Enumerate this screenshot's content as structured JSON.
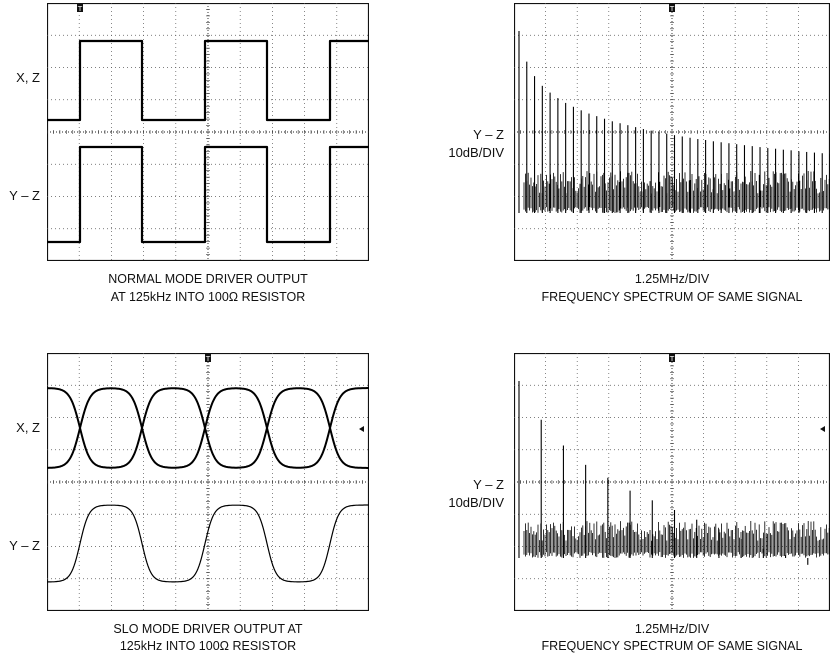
{
  "panels": [
    {
      "id": "normal-time",
      "type": "oscilloscope-time",
      "channels": [
        {
          "label": "X, Z",
          "waveform": "square-diff"
        },
        {
          "label": "Y – Z",
          "waveform": "square"
        }
      ],
      "period_us": 8,
      "frequency": "125kHz",
      "caption": [
        "NORMAL MODE DRIVER OUTPUT",
        "AT 125kHz INTO 100Ω RESISTOR"
      ]
    },
    {
      "id": "normal-spectrum",
      "type": "spectrum",
      "ylabel": [
        "Y – Z",
        "10dB/DIV"
      ],
      "xscale": "1.25MHz/DIV",
      "caption": [
        "1.25MHz/DIV",
        "FREQUENCY SPECTRUM OF SAME SIGNAL"
      ]
    },
    {
      "id": "slo-time",
      "type": "oscilloscope-time",
      "channels": [
        {
          "label": "X, Z",
          "waveform": "slew-diff"
        },
        {
          "label": "Y – Z",
          "waveform": "slew"
        }
      ],
      "period_us": 8,
      "frequency": "125kHz",
      "caption": [
        "SLO MODE DRIVER OUTPUT AT",
        "125kHz INTO 100Ω RESISTOR"
      ]
    },
    {
      "id": "slo-spectrum",
      "type": "spectrum",
      "ylabel": [
        "Y – Z",
        "10dB/DIV"
      ],
      "xscale": "1.25MHz/DIV",
      "caption": [
        "1.25MHz/DIV",
        "FREQUENCY SPECTRUM OF SAME SIGNAL"
      ]
    }
  ],
  "chart_data": [
    {
      "type": "line",
      "title": "NORMAL MODE DRIVER OUTPUT AT 125kHz INTO 100Ω RESISTOR",
      "xlabel": "",
      "ylabel": "",
      "grid": true,
      "x": [
        0,
        1.6,
        1.6,
        5.6,
        5.6,
        9.6,
        9.6,
        10
      ],
      "series": [
        {
          "name": "X, Z",
          "values": [
            0,
            0,
            1,
            1,
            0,
            0,
            1,
            1
          ]
        },
        {
          "name": "Y – Z",
          "values": [
            -1,
            -1,
            1,
            1,
            -1,
            -1,
            1,
            1
          ]
        }
      ]
    },
    {
      "type": "line",
      "title": "FREQUENCY SPECTRUM OF SAME SIGNAL",
      "xlabel": "1.25MHz/DIV",
      "ylabel": "Y – Z 10dB/DIV",
      "grid": true,
      "harmonics_dB_rel": [
        0,
        -9.5,
        -14,
        -17,
        -19.1,
        -20.8,
        -22.3,
        -23.5,
        -24.6,
        -25.6,
        -26.4,
        -27.2,
        -28,
        -28.6,
        -29.2,
        -29.8,
        -30.4,
        -30.9,
        -31.4,
        -31.8,
        -32.3,
        -32.7,
        -33.1,
        -33.5,
        -33.8,
        -34.2,
        -34.5,
        -34.8,
        -35.1,
        -35.4,
        -35.7,
        -36,
        -36.3,
        -36.5,
        -36.8,
        -37,
        -37.3,
        -37.5,
        -37.7,
        -37.9,
        -38.1
      ]
    },
    {
      "type": "line",
      "title": "SLO MODE DRIVER OUTPUT AT 125kHz INTO 100Ω RESISTOR",
      "xlabel": "",
      "ylabel": "",
      "grid": true,
      "x": [
        0,
        0.4,
        0.8,
        1.2,
        1.6,
        2.0,
        2.4,
        2.8,
        3.2,
        3.6,
        4.0
      ],
      "series": [
        {
          "name": "X, Z",
          "values": [
            0,
            0.02,
            0.12,
            0.45,
            0.82,
            0.96,
            1,
            1,
            1,
            1,
            1
          ]
        },
        {
          "name": "Y – Z",
          "values": [
            -1,
            -0.97,
            -0.8,
            -0.2,
            0.55,
            0.88,
            0.97,
            1,
            1,
            1,
            1
          ]
        }
      ]
    },
    {
      "type": "line",
      "title": "FREQUENCY SPECTRUM OF SAME SIGNAL",
      "xlabel": "1.25MHz/DIV",
      "ylabel": "Y – Z 10dB/DIV",
      "grid": true,
      "harmonics_dB_rel": [
        0,
        -12,
        -20,
        -26,
        -30,
        -34,
        -37,
        -40,
        -43,
        -46,
        -49,
        -52,
        -54,
        -57,
        -60
      ]
    }
  ]
}
